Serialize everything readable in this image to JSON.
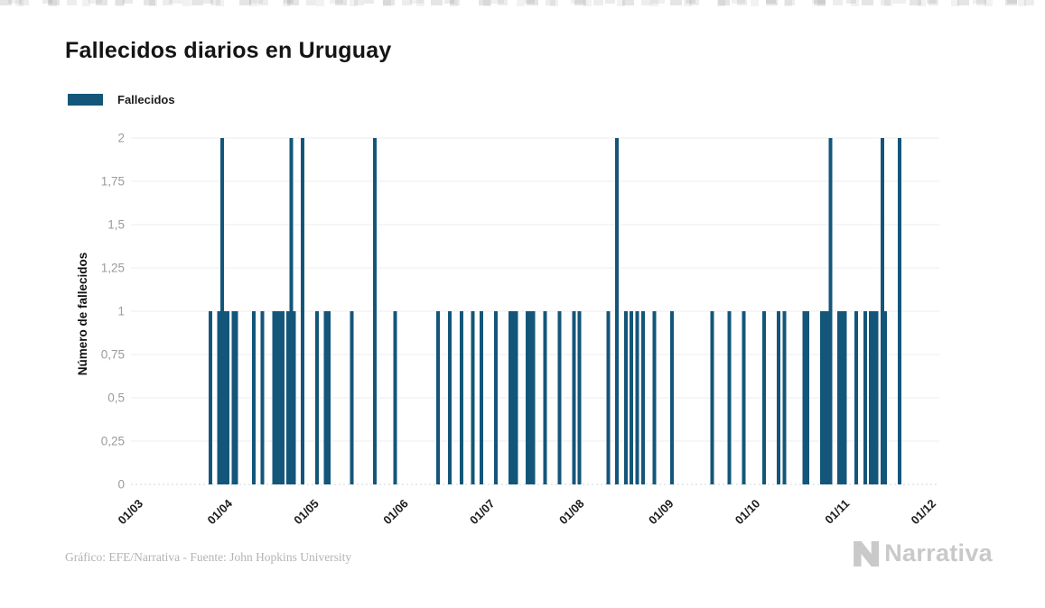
{
  "title": "Fallecidos diarios en Uruguay",
  "legend": {
    "label": "Fallecidos",
    "color": "#14567A"
  },
  "colors": {
    "bar": "#14567A",
    "grid": "#ededed",
    "baseline_dots": "#ccd7dd",
    "axis_text": "#9b9b9b",
    "dark_text": "#1c1c1c",
    "footer_text": "#b3b3b3",
    "brand_gray": "#c9c9c9"
  },
  "footer": {
    "credit": "Gráfico: EFE/Narrativa - Fuente: John Hopkins University",
    "brand": "Narrativa"
  },
  "chart_data": {
    "type": "bar",
    "title": "Fallecidos diarios en Uruguay",
    "xlabel": "",
    "ylabel": "Número de fallecidos",
    "ylim": [
      0,
      2
    ],
    "ytick_step": 0.25,
    "ytick_labels": [
      "0",
      "0,25",
      "0,5",
      "0,75",
      "1",
      "1,25",
      "1,5",
      "1,75",
      "2"
    ],
    "grid": true,
    "legend_position": "top-left",
    "xticks": [
      {
        "label": "01/03",
        "day": 0
      },
      {
        "label": "01/04",
        "day": 31
      },
      {
        "label": "01/05",
        "day": 61
      },
      {
        "label": "01/06",
        "day": 92
      },
      {
        "label": "01/07",
        "day": 122
      },
      {
        "label": "01/08",
        "day": 153
      },
      {
        "label": "01/09",
        "day": 184
      },
      {
        "label": "01/10",
        "day": 214
      },
      {
        "label": "01/11",
        "day": 245
      },
      {
        "label": "01/12",
        "day": 275
      }
    ],
    "x_domain_days": [
      0,
      275
    ],
    "series": [
      {
        "name": "Fallecidos",
        "color": "#14567A",
        "points": [
          [
            26,
            1
          ],
          [
            29,
            1
          ],
          [
            30,
            2
          ],
          [
            31,
            1
          ],
          [
            32,
            1
          ],
          [
            34,
            1
          ],
          [
            35,
            1
          ],
          [
            41,
            1
          ],
          [
            44,
            1
          ],
          [
            48,
            1
          ],
          [
            49,
            1
          ],
          [
            50,
            1
          ],
          [
            51,
            1
          ],
          [
            53,
            1
          ],
          [
            54,
            2
          ],
          [
            55,
            1
          ],
          [
            58,
            2
          ],
          [
            63,
            1
          ],
          [
            66,
            1
          ],
          [
            67,
            1
          ],
          [
            75,
            1
          ],
          [
            83,
            2
          ],
          [
            90,
            1
          ],
          [
            105,
            1
          ],
          [
            109,
            1
          ],
          [
            113,
            1
          ],
          [
            117,
            1
          ],
          [
            120,
            1
          ],
          [
            125,
            1
          ],
          [
            130,
            1
          ],
          [
            131,
            1
          ],
          [
            132,
            1
          ],
          [
            136,
            1
          ],
          [
            137,
            1
          ],
          [
            138,
            1
          ],
          [
            142,
            1
          ],
          [
            147,
            1
          ],
          [
            152,
            1
          ],
          [
            154,
            1
          ],
          [
            164,
            1
          ],
          [
            167,
            2
          ],
          [
            170,
            1
          ],
          [
            172,
            1
          ],
          [
            174,
            1
          ],
          [
            176,
            1
          ],
          [
            180,
            1
          ],
          [
            186,
            1
          ],
          [
            200,
            1
          ],
          [
            206,
            1
          ],
          [
            211,
            1
          ],
          [
            218,
            1
          ],
          [
            223,
            1
          ],
          [
            225,
            1
          ],
          [
            232,
            1
          ],
          [
            233,
            1
          ],
          [
            238,
            1
          ],
          [
            239,
            1
          ],
          [
            240,
            1
          ],
          [
            241,
            2
          ],
          [
            244,
            1
          ],
          [
            245,
            1
          ],
          [
            246,
            1
          ],
          [
            250,
            1
          ],
          [
            253,
            1
          ],
          [
            255,
            1
          ],
          [
            256,
            1
          ],
          [
            257,
            1
          ],
          [
            259,
            2
          ],
          [
            260,
            1
          ],
          [
            265,
            2
          ]
        ]
      }
    ]
  }
}
